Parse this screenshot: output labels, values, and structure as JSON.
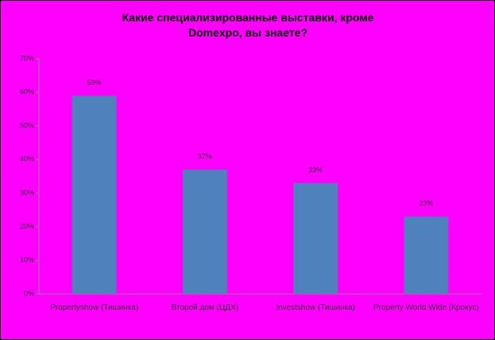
{
  "chart_data": {
    "type": "bar",
    "title": "Какие специализированные выставки, кроме Domexpo, вы знаете?",
    "categories": [
      "Propertyshow (Тишинка)",
      "Второй дом (ЦДХ)",
      "Investshow (Тишинка)",
      "Property World Wide (Крокус)"
    ],
    "values": [
      59,
      37,
      33,
      23
    ],
    "value_labels": [
      "59%",
      "37%",
      "33%",
      "23%"
    ],
    "color": "#4f81bd",
    "ylim": [
      0,
      70
    ],
    "yticks": [
      {
        "value": 0,
        "label": "0%"
      },
      {
        "value": 10,
        "label": "10%"
      },
      {
        "value": 20,
        "label": "20%"
      },
      {
        "value": 30,
        "label": "30%"
      },
      {
        "value": 40,
        "label": "40%"
      },
      {
        "value": 50,
        "label": "50%"
      },
      {
        "value": 60,
        "label": "60%"
      },
      {
        "value": 70,
        "label": "70%"
      }
    ],
    "grid": false
  }
}
